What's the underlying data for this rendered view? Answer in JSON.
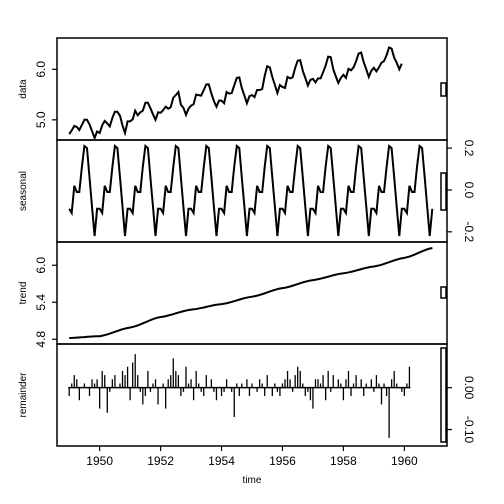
{
  "chart_data": {
    "type": "line",
    "xlabel": "time",
    "x_ticks": [
      1950,
      1952,
      1954,
      1956,
      1958,
      1960
    ],
    "xlim": [
      1948.6,
      1961.4
    ],
    "start": 1949,
    "frequency": 12,
    "panels": [
      {
        "name": "data",
        "ylabel": "data",
        "ticks": [
          5.0,
          6.0
        ],
        "tick_labels": [
          "5.0",
          "6.0"
        ],
        "tick_side": "left",
        "ylim": [
          4.72,
          6.5
        ],
        "style": "line",
        "values": [
          4.72,
          4.79,
          4.88,
          4.86,
          4.8,
          4.9,
          5.0,
          5.0,
          4.91,
          4.78,
          4.64,
          4.77,
          4.74,
          4.89,
          4.98,
          4.93,
          4.87,
          5.04,
          5.16,
          5.16,
          5.08,
          4.89,
          4.74,
          4.97,
          4.97,
          5.01,
          5.18,
          5.09,
          5.15,
          5.18,
          5.34,
          5.34,
          5.23,
          5.11,
          5.0,
          5.15,
          5.14,
          5.19,
          5.26,
          5.22,
          5.25,
          5.44,
          5.49,
          5.55,
          5.3,
          5.24,
          5.1,
          5.22,
          5.28,
          5.31,
          5.5,
          5.49,
          5.48,
          5.59,
          5.7,
          5.7,
          5.52,
          5.37,
          5.26,
          5.38,
          5.38,
          5.33,
          5.55,
          5.52,
          5.53,
          5.68,
          5.83,
          5.84,
          5.63,
          5.48,
          5.33,
          5.47,
          5.49,
          5.45,
          5.59,
          5.59,
          5.61,
          5.87,
          6.06,
          6.04,
          5.85,
          5.69,
          5.53,
          5.69,
          5.65,
          5.63,
          5.85,
          5.82,
          5.84,
          6.03,
          6.17,
          6.18,
          5.97,
          5.83,
          5.68,
          5.79,
          5.81,
          5.74,
          5.82,
          5.82,
          5.94,
          6.07,
          6.25,
          6.24,
          6.0,
          5.86,
          5.73,
          5.83,
          5.89,
          5.83,
          6.01,
          5.98,
          6.04,
          6.16,
          6.31,
          6.33,
          6.14,
          6.0,
          5.85,
          5.97,
          6.03,
          5.96,
          6.04,
          6.13,
          6.16,
          6.28,
          6.43,
          6.41,
          6.23,
          6.13,
          6.0,
          6.11
        ]
      },
      {
        "name": "seasonal",
        "ylabel": "seasonal",
        "ticks": [
          -0.2,
          0.0,
          0.2
        ],
        "tick_labels": [
          "-0.2",
          "0.0",
          "0.2"
        ],
        "tick_side": "right",
        "ylim": [
          -0.22,
          0.21
        ],
        "style": "line",
        "period_values": [
          -0.09,
          -0.11,
          0.02,
          -0.01,
          -0.01,
          0.11,
          0.21,
          0.2,
          0.06,
          -0.08,
          -0.22,
          -0.09
        ]
      },
      {
        "name": "trend",
        "ylabel": "trend",
        "ticks": [
          4.8,
          5.4,
          6.0
        ],
        "tick_labels": [
          "4.8",
          "5.4",
          "6.0"
        ],
        "tick_side": "left",
        "ylim": [
          4.82,
          6.28
        ],
        "style": "line",
        "knots": [
          [
            1949.0,
            4.82
          ],
          [
            1950.0,
            4.85
          ],
          [
            1951.0,
            4.99
          ],
          [
            1952.0,
            5.16
          ],
          [
            1953.0,
            5.28
          ],
          [
            1954.0,
            5.37
          ],
          [
            1955.0,
            5.49
          ],
          [
            1956.0,
            5.63
          ],
          [
            1957.0,
            5.76
          ],
          [
            1958.0,
            5.87
          ],
          [
            1959.0,
            5.98
          ],
          [
            1960.0,
            6.12
          ],
          [
            1960.92,
            6.28
          ]
        ]
      },
      {
        "name": "remainder",
        "ylabel": "remainder",
        "ticks": [
          -0.1,
          0.0
        ],
        "tick_labels": [
          "-0.10",
          "0.00"
        ],
        "tick_side": "right",
        "ylim": [
          -0.125,
          0.09
        ],
        "style": "bars",
        "values": [
          -0.02,
          0.01,
          0.03,
          0.02,
          -0.03,
          0.0,
          0.01,
          0.0,
          -0.02,
          0.02,
          0.01,
          0.02,
          -0.05,
          0.04,
          0.03,
          -0.06,
          -0.01,
          0.02,
          0.03,
          0.0,
          0.01,
          0.04,
          0.03,
          0.05,
          -0.03,
          0.06,
          0.08,
          0.03,
          -0.01,
          -0.04,
          -0.02,
          0.04,
          -0.01,
          0.01,
          0.02,
          -0.04,
          0.0,
          0.01,
          -0.05,
          0.02,
          0.03,
          0.07,
          0.04,
          0.03,
          -0.02,
          -0.01,
          0.05,
          0.01,
          0.02,
          -0.03,
          0.04,
          0.01,
          -0.01,
          -0.02,
          0.03,
          0.0,
          0.02,
          -0.01,
          -0.03,
          0.0,
          -0.02,
          -0.01,
          0.02,
          0.0,
          -0.01,
          -0.07,
          0.01,
          -0.02,
          0.01,
          0.0,
          0.02,
          -0.02,
          0.01,
          0.0,
          -0.01,
          0.02,
          0.01,
          -0.02,
          0.03,
          0.0,
          -0.02,
          0.01,
          -0.01,
          -0.02,
          0.01,
          0.02,
          0.04,
          0.02,
          -0.01,
          0.03,
          0.05,
          0.04,
          0.01,
          -0.02,
          -0.01,
          -0.03,
          -0.05,
          0.02,
          0.02,
          0.01,
          0.03,
          -0.03,
          0.04,
          -0.01,
          0.03,
          0.0,
          0.02,
          0.01,
          -0.03,
          0.02,
          0.04,
          -0.02,
          0.01,
          0.03,
          0.0,
          0.02,
          -0.02,
          0.01,
          0.0,
          0.02,
          -0.01,
          0.03,
          0.01,
          -0.04,
          0.01,
          -0.02,
          -0.12,
          0.02,
          0.04,
          0.01,
          0.0,
          -0.01,
          -0.02,
          0.01,
          0.05
        ]
      }
    ]
  }
}
